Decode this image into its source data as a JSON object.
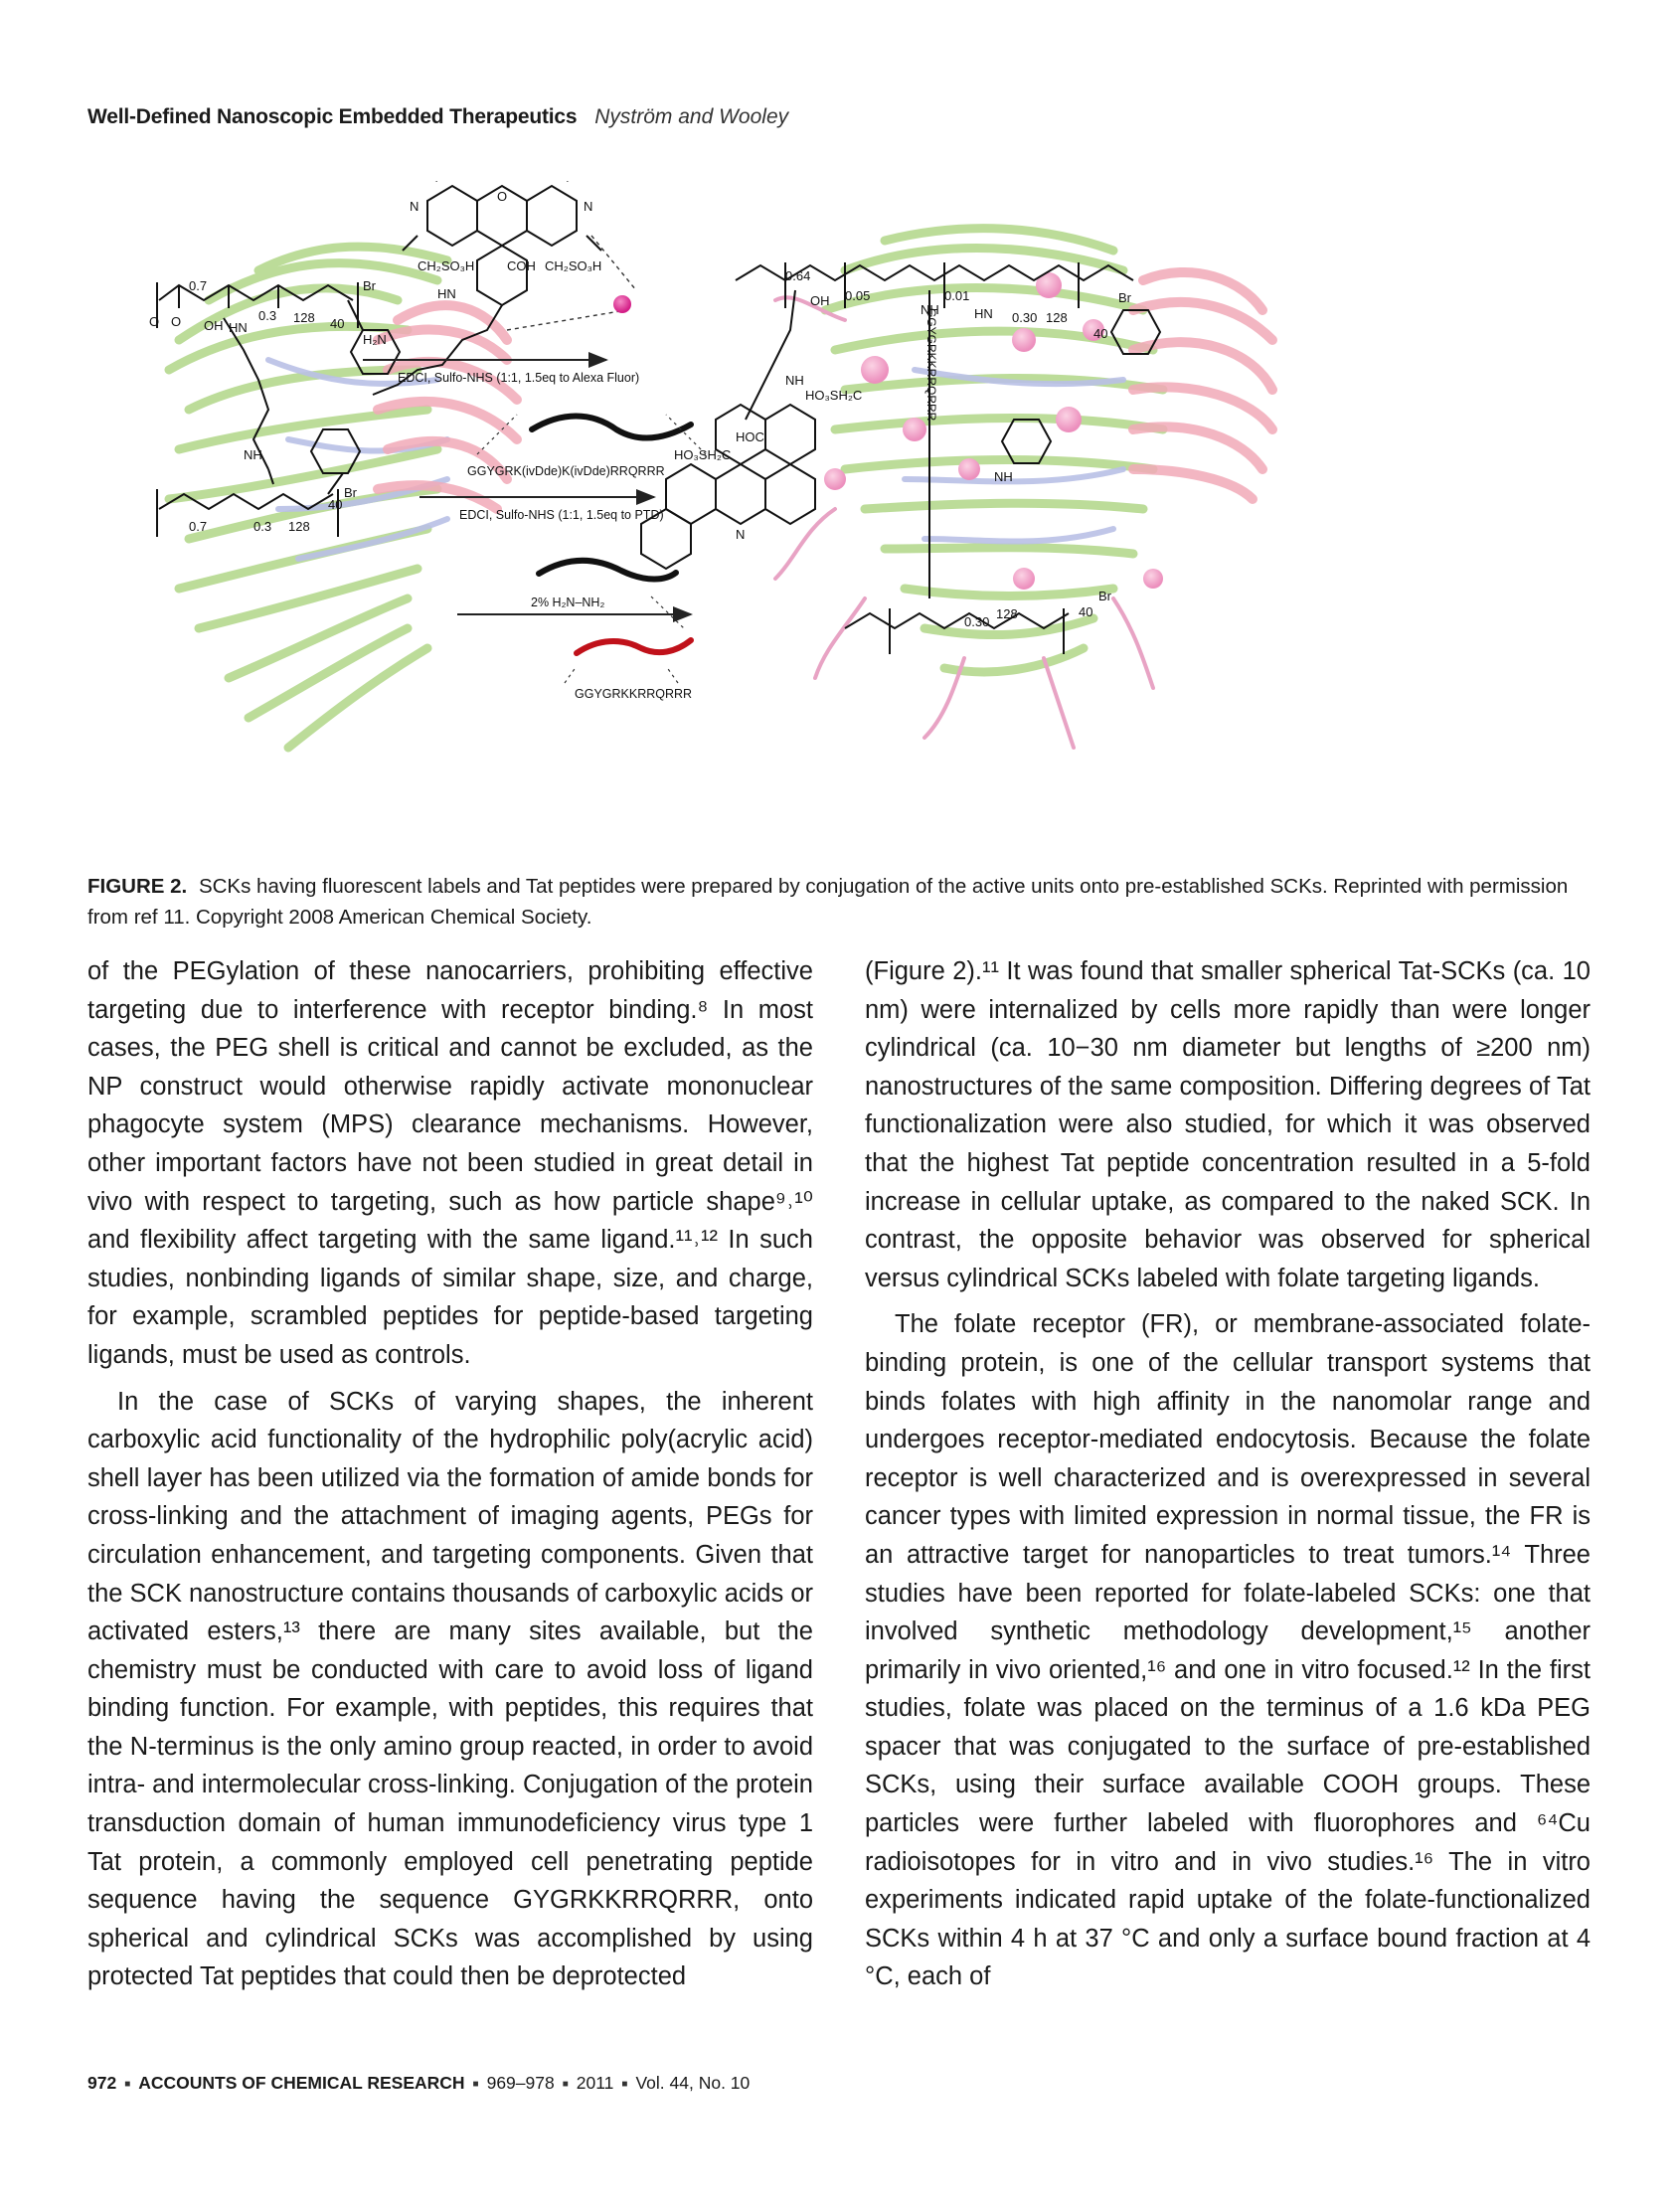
{
  "header": {
    "title": "Well-Defined Nanoscopic Embedded Therapeutics",
    "authors": "Nyström and Wooley"
  },
  "figure": {
    "label": "FIGURE 2.",
    "caption": "SCKs having fluorescent labels and Tat peptides were prepared by conjugation of the active units onto pre-established SCKs. Reprinted with permission from ref 11. Copyright 2008 American Chemical Society.",
    "reagents": {
      "step1": "EDCI, Sulfo-NHS (1:1, 1.5eq to Alexa Fluor)",
      "peptide_protected": "GGYGRK(ivDde)K(ivDde)RRQRRR",
      "step2": "EDCI, Sulfo-NHS (1:1, 1.5eq to PTD)",
      "step3": "2%   H₂N–NH₂",
      "peptide_free": "GGYGRKKRRQRRR"
    },
    "left_structure": {
      "sub_07": "0.7",
      "sub_03": "0.3",
      "sub_128": "128",
      "sub_40": "40",
      "br": "Br",
      "o1": "O",
      "o2": "O",
      "oh": "OH",
      "hn": "HN",
      "nh": "NH"
    },
    "dye_labels": {
      "ch2so3h_left": "CH₂SO₃H",
      "cooh": "COH",
      "ch2so3h_right": "CH₂SO₃H",
      "hn": "HN",
      "h2n": "H₂N",
      "o": "O",
      "n_left": "N",
      "n_right": "N"
    },
    "right_structure": {
      "sub_064": "0.64",
      "sub_005": "0.05",
      "sub_001": "0.01",
      "sub_030": "0.30",
      "sub_128": "128",
      "sub_40": "40",
      "br": "Br",
      "peptide_vertical": "GGYGRKKRRQRRR",
      "nh": "NH",
      "hn": "HN",
      "hoc": "HOC",
      "ho3sh2c": "HO₃SH₂C",
      "ho3sh2c_2": "HO₃SH₂C",
      "n": "N",
      "oh": "OH"
    }
  },
  "body": {
    "left_paragraphs": [
      "of the PEGylation of these nanocarriers, prohibiting effective targeting due to interference with receptor binding.⁸ In most cases, the PEG shell is critical and cannot be excluded, as the NP construct would otherwise rapidly activate mononuclear phagocyte system (MPS) clearance mechanisms. However, other important factors have not been studied in great detail in vivo with respect to targeting, such as how particle shape⁹˒¹⁰ and flexibility affect targeting with the same ligand.¹¹˒¹² In such studies, nonbinding ligands of similar shape, size, and charge, for example, scrambled peptides for peptide-based targeting ligands, must be used as controls.",
      "In the case of SCKs of varying shapes, the inherent carboxylic acid functionality of the hydrophilic poly(acrylic acid) shell layer has been utilized via the formation of amide bonds for cross-linking and the attachment of imaging agents, PEGs for circulation enhancement, and targeting components. Given that the SCK nanostructure contains thousands of carboxylic acids or activated esters,¹³ there are many sites available, but the chemistry must be conducted with care to avoid loss of ligand binding function. For example, with peptides, this requires that the N-terminus is the only amino group reacted, in order to avoid intra- and intermolecular cross-linking. Conjugation of the protein transduction domain of human immunodeficiency virus type 1 Tat protein, a commonly employed cell penetrating peptide sequence having the sequence GYGRKKRRQRRR, onto spherical and cylindrical SCKs was accomplished by using protected Tat peptides that could then be deprotected"
    ],
    "right_paragraphs": [
      "(Figure 2).¹¹ It was found that smaller spherical Tat-SCKs (ca. 10 nm) were internalized by cells more rapidly than were longer cylindrical (ca. 10−30 nm diameter but lengths of ≥200 nm) nanostructures of the same composition. Differing degrees of Tat functionalization were also studied, for which it was observed that the highest Tat peptide concentration resulted in a 5-fold increase in cellular uptake, as compared to the naked SCK. In contrast, the opposite behavior was observed for spherical versus cylindrical SCKs labeled with folate targeting ligands.",
      "The folate receptor (FR), or membrane-associated folate-binding protein, is one of the cellular transport systems that binds folates with high affinity in the nanomolar range and undergoes receptor-mediated endocytosis. Because the folate receptor is well characterized and is overexpressed in several cancer types with limited expression in normal tissue, the FR is an attractive target for nanoparticles to treat tumors.¹⁴ Three studies have been reported for folate-labeled SCKs: one that involved synthetic methodology development,¹⁵ another primarily in vivo oriented,¹⁶ and one in vitro focused.¹² In the first studies, folate was placed on the terminus of a 1.6 kDa PEG spacer that was conjugated to the surface of pre-established SCKs, using their surface available COOH groups. These particles were further labeled with fluorophores and ⁶⁴Cu radioisotopes for in vitro and in vivo studies.¹⁶ The in vitro experiments indicated rapid uptake of the folate-functionalized SCKs within 4 h at 37 °C and only a surface bound fraction at 4 °C, each of"
    ]
  },
  "footer": {
    "page": "972",
    "journal": "ACCOUNTS OF CHEMICAL RESEARCH",
    "pages": "969–978",
    "year": "2011",
    "volume": "Vol. 44, No. 10"
  },
  "colors": {
    "corona_green": "#b5d98f",
    "corona_blue": "#b9c0e6",
    "core_pink": "#f2aab8",
    "dye_magenta": "#e0409a",
    "peptide_red": "#c0111a"
  }
}
